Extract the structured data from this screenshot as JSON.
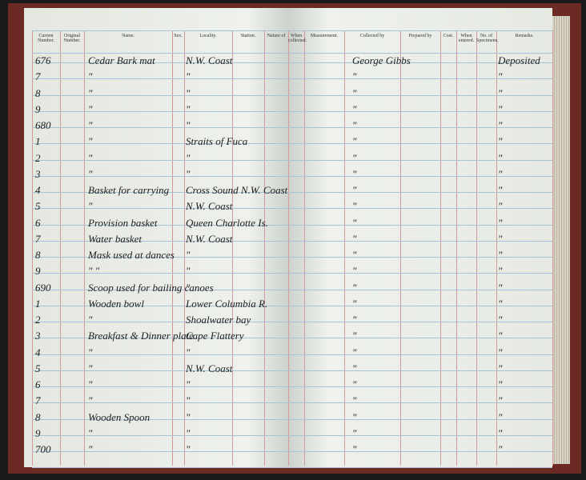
{
  "header": {
    "left_columns": [
      "Current Number.",
      "Original Number.",
      "Name.",
      "Sex.",
      "Locality.",
      "Station.",
      "Nature of"
    ],
    "right_columns": [
      "When collected.",
      "Measurement.",
      "Collected by",
      "Prepared by",
      "Cost.",
      "When entered.",
      "No. of Specimens.",
      "Remarks."
    ]
  },
  "rows": [
    [
      "676",
      "Cedar Bark mat",
      "N.W. Coast",
      "George Gibbs",
      "Deposited"
    ],
    [
      "7",
      "\"",
      "\"",
      "\"",
      "\""
    ],
    [
      "8",
      "\"",
      "\"",
      "\"",
      "\""
    ],
    [
      "9",
      "\"",
      "\"",
      "\"",
      "\""
    ],
    [
      "680",
      "\"",
      "\"",
      "\"",
      "\""
    ],
    [
      "1",
      "\"",
      "Straits of Fuca",
      "\"",
      "\""
    ],
    [
      "2",
      "\"",
      "\"",
      "\"",
      "\""
    ],
    [
      "3",
      "\"",
      "\"",
      "\"",
      "\""
    ],
    [
      "4",
      "Basket for carrying",
      "Cross Sound N.W. Coast",
      "\"",
      "\""
    ],
    [
      "5",
      "\"",
      "N.W. Coast",
      "\"",
      "\""
    ],
    [
      "6",
      "Provision basket",
      "Queen Charlotte Is.",
      "\"",
      "\""
    ],
    [
      "7",
      "Water basket",
      "N.W. Coast",
      "\"",
      "\""
    ],
    [
      "8",
      "Mask used at dances",
      "\"",
      "\"",
      "\""
    ],
    [
      "9",
      "\" \"",
      "\"",
      "\"",
      "\""
    ],
    [
      "690",
      "Scoop used for bailing canoes",
      "\"",
      "\"",
      "\""
    ],
    [
      "1",
      "Wooden bowl",
      "Lower Columbia R.",
      "\"",
      "\""
    ],
    [
      "2",
      "\"",
      "Shoalwater bay",
      "\"",
      "\""
    ],
    [
      "3",
      "Breakfast & Dinner plate",
      "Cape Flattery",
      "\"",
      "\""
    ],
    [
      "4",
      "\"",
      "\"",
      "\"",
      "\""
    ],
    [
      "5",
      "\"",
      "N.W. Coast",
      "\"",
      "\""
    ],
    [
      "6",
      "\"",
      "\"",
      "\"",
      "\""
    ],
    [
      "7",
      "\"",
      "\"",
      "\"",
      "\""
    ],
    [
      "8",
      "Wooden Spoon",
      "\"",
      "\"",
      "\""
    ],
    [
      "9",
      "\"",
      "\"",
      "\"",
      "\""
    ],
    [
      "700",
      "\"",
      "\"",
      "\"",
      "\""
    ]
  ]
}
